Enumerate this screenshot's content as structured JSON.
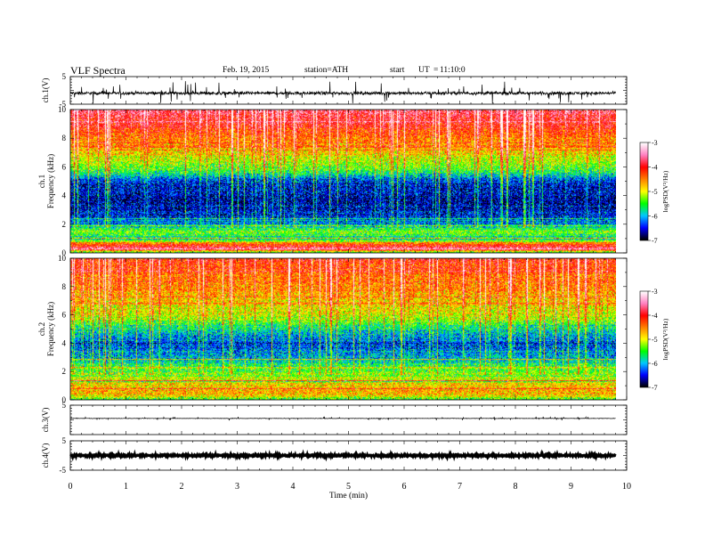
{
  "header": {
    "title": "VLF  Spectra",
    "date": "Feb. 19, 2015",
    "station": "station=ATH",
    "start_label": "start",
    "ut_label": "UT",
    "equals": "=",
    "start_time": "11:10:0"
  },
  "chart_data": [
    {
      "type": "line",
      "panel": "ch1-waveform",
      "ylabel": "ch.1(V)",
      "ylim": [
        -5,
        5
      ],
      "y_tick_labels": [
        "5",
        "-5"
      ],
      "xlim": [
        0,
        10
      ],
      "data_end_min": 9.8,
      "series": [
        {
          "baseline": -1.0,
          "noise_amplitude": 0.6,
          "spike_amplitude": 1.3,
          "color": "#000000"
        }
      ]
    },
    {
      "type": "heatmap",
      "panel": "ch1-spectrogram",
      "ylabel": [
        "ch.1",
        "Frequency (kHz)"
      ],
      "ylim": [
        0,
        10
      ],
      "y_tick_labels": [
        "0",
        "2",
        "4",
        "6",
        "8",
        "10"
      ],
      "xlim": [
        0,
        10
      ],
      "data_end_min": 9.8,
      "bands_khz_to_logpsd": [
        [
          0.0,
          -6.0
        ],
        [
          0.3,
          -3.5
        ],
        [
          0.6,
          -4.2
        ],
        [
          1.0,
          -5.8
        ],
        [
          1.5,
          -5.3
        ],
        [
          2.0,
          -6.1
        ],
        [
          2.5,
          -6.6
        ],
        [
          3.5,
          -6.8
        ],
        [
          5.0,
          -6.6
        ],
        [
          5.8,
          -5.6
        ],
        [
          6.8,
          -5.1
        ],
        [
          8.0,
          -4.6
        ],
        [
          9.0,
          -4.2
        ],
        [
          10.0,
          -3.9
        ]
      ],
      "colorbar": {
        "label": "logPSD(V²/Hz)",
        "ticks": [
          "-3",
          "-4",
          "-5",
          "-6",
          "-7"
        ],
        "range": [
          -7,
          -3
        ]
      }
    },
    {
      "type": "heatmap",
      "panel": "ch2-spectrogram",
      "ylabel": [
        "ch.2",
        "Frequency (kHz)"
      ],
      "ylim": [
        0,
        10
      ],
      "y_tick_labels": [
        "0",
        "2",
        "4",
        "6",
        "8",
        "10"
      ],
      "xlim": [
        0,
        10
      ],
      "data_end_min": 9.8,
      "bands_khz_to_logpsd": [
        [
          0.0,
          -5.5
        ],
        [
          0.5,
          -4.6
        ],
        [
          1.2,
          -4.9
        ],
        [
          2.0,
          -5.4
        ],
        [
          3.0,
          -6.1
        ],
        [
          4.0,
          -6.5
        ],
        [
          5.0,
          -5.9
        ],
        [
          6.0,
          -5.2
        ],
        [
          7.5,
          -4.8
        ],
        [
          9.0,
          -4.5
        ],
        [
          10.0,
          -4.3
        ]
      ],
      "colorbar": {
        "label": "logPSD(V²/Hz)",
        "ticks": [
          "-3",
          "-4",
          "-5",
          "-6",
          "-7"
        ],
        "range": [
          -7,
          -3
        ]
      }
    },
    {
      "type": "line",
      "panel": "ch3-waveform",
      "ylabel": "ch.3(V)",
      "ylim": [
        -5,
        5
      ],
      "y_tick_labels": [
        "5"
      ],
      "xlim": [
        0,
        10
      ],
      "data_end_min": 9.8,
      "series": [
        {
          "baseline": 0.5,
          "noise_amplitude": 0.08,
          "spike_amplitude": 0.2,
          "color": "#000000"
        }
      ]
    },
    {
      "type": "line",
      "panel": "ch4-waveform",
      "ylabel": "ch.4(V)",
      "ylim": [
        -5,
        5
      ],
      "y_tick_labels": [
        "5",
        "-5"
      ],
      "xlim": [
        0,
        10
      ],
      "data_end_min": 9.8,
      "series": [
        {
          "baseline": 0.0,
          "noise_amplitude": 0.25,
          "spike_amplitude": 0.25,
          "color": "#000000"
        }
      ]
    }
  ],
  "x_axis": {
    "label": "Time (min)",
    "tick_labels": [
      "0",
      "1",
      "2",
      "3",
      "4",
      "5",
      "6",
      "7",
      "8",
      "9",
      "10"
    ]
  },
  "colors": {
    "colormap": [
      "#000000",
      "#0000ff",
      "#00c8ff",
      "#00ff00",
      "#ffff00",
      "#ff8000",
      "#ff0000",
      "#ff80c0",
      "#ffffff"
    ],
    "background": "#ffffff"
  }
}
